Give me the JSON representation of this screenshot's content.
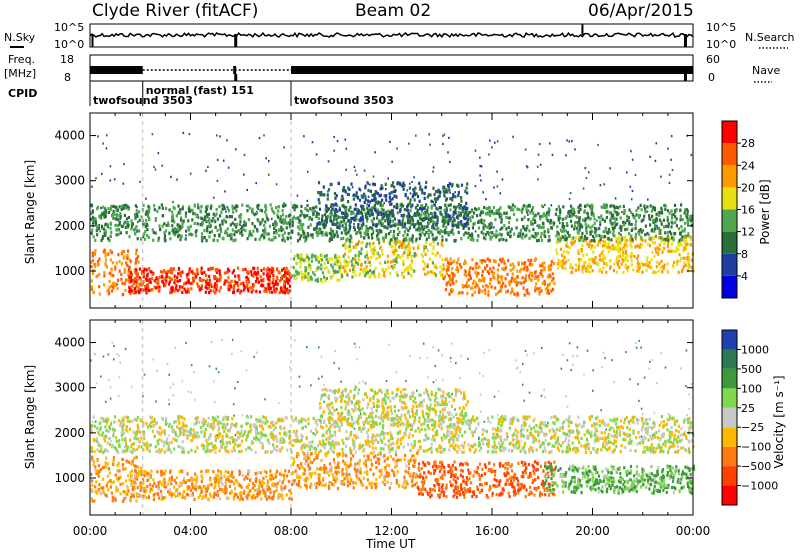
{
  "header": {
    "station": "Clyde River (fitACF)",
    "beam": "Beam 02",
    "date": "06/Apr/2015"
  },
  "strip": {
    "nsky_label": "N.Sky",
    "nsky_ticks": [
      "10^5",
      "10^0"
    ],
    "nsearch_label": "N.Search",
    "nsearch_ticks": [
      "10^5",
      "10^0"
    ],
    "freq_label_1": "Freq.",
    "freq_label_2": "[MHz]",
    "freq_ticks": [
      "18",
      "8"
    ],
    "nave_label": "Nave",
    "nave_ticks": [
      "60",
      "0"
    ],
    "cpid_label": "CPID",
    "cpid_segments": [
      {
        "label": "twofsound 3503",
        "start_hour": 0.0,
        "end_hour": 2.1
      },
      {
        "label": "normal (fast) 151",
        "start_hour": 2.1,
        "end_hour": 8.0
      },
      {
        "label": "twofsound 3503",
        "start_hour": 8.0,
        "end_hour": 24.0
      }
    ]
  },
  "power_panel": {
    "ylabel": "Slant Range [km]",
    "yticks": [
      "4000",
      "3000",
      "2000",
      "1000"
    ],
    "colorbar_label": "Power [dB]",
    "colorbar_ticks": [
      "28",
      "24",
      "20",
      "16",
      "12",
      "8",
      "4"
    ],
    "colors": [
      "#0000e0",
      "#1f3fa0",
      "#2a6e3a",
      "#4fa84f",
      "#e8e010",
      "#ff9900",
      "#ff5a00",
      "#ff0000"
    ]
  },
  "velocity_panel": {
    "ylabel": "Slant Range [km]",
    "yticks": [
      "4000",
      "3000",
      "2000",
      "1000"
    ],
    "colorbar_label": "Velocity [m s⁻¹]",
    "colorbar_ticks": [
      "1000",
      "500",
      "100",
      "25",
      "−25",
      "−100",
      "−500",
      "−1000"
    ],
    "colors": [
      "#2040b0",
      "#2f7a55",
      "#3c9a3c",
      "#7fd84f",
      "#c8c8c8",
      "#ffb800",
      "#ff7a10",
      "#ff4000",
      "#ff0000"
    ]
  },
  "xaxis": {
    "ticks": [
      "00:00",
      "04:00",
      "08:00",
      "12:00",
      "16:00",
      "20:00",
      "00:00"
    ],
    "label": "Time UT"
  },
  "chart_data": {
    "type": "heatmap",
    "title": "Clyde River (fitACF) Beam 02 06/Apr/2015",
    "x_unit": "hours UT",
    "x_range": [
      0,
      24
    ],
    "y_range_km": [
      180,
      4500
    ],
    "panels": [
      {
        "name": "Power",
        "colorbar_unit": "dB",
        "colorbar_range": [
          0,
          30
        ],
        "bands": [
          {
            "t0": 0.0,
            "t1": 2.0,
            "r0": 500,
            "r1": 1500,
            "level": 24
          },
          {
            "t0": 1.5,
            "t1": 8.0,
            "r0": 550,
            "r1": 1100,
            "level": 28
          },
          {
            "t0": 8.0,
            "t1": 10.0,
            "r0": 800,
            "r1": 1400,
            "level": 16
          },
          {
            "t0": 10.0,
            "t1": 14.0,
            "r0": 900,
            "r1": 1700,
            "level": 18
          },
          {
            "t0": 14.0,
            "t1": 18.5,
            "r0": 500,
            "r1": 1300,
            "level": 24
          },
          {
            "t0": 18.5,
            "t1": 24.0,
            "r0": 1000,
            "r1": 1800,
            "level": 20
          },
          {
            "t0": 0.0,
            "t1": 24.0,
            "r0": 1700,
            "r1": 2500,
            "level": 12
          },
          {
            "t0": 9.0,
            "t1": 15.0,
            "r0": 2000,
            "r1": 3000,
            "level": 8
          }
        ]
      },
      {
        "name": "Velocity",
        "colorbar_unit": "m s^-1",
        "colorbar_range": [
          -1000,
          1000
        ],
        "bands": [
          {
            "t0": 0.0,
            "t1": 2.0,
            "r0": 500,
            "r1": 1500,
            "level": -100
          },
          {
            "t0": 1.5,
            "t1": 8.0,
            "r0": 550,
            "r1": 1200,
            "level": -100
          },
          {
            "t0": 8.0,
            "t1": 13.0,
            "r0": 800,
            "r1": 1600,
            "level": -100
          },
          {
            "t0": 13.0,
            "t1": 18.5,
            "r0": 600,
            "r1": 1400,
            "level": -500
          },
          {
            "t0": 18.0,
            "t1": 24.0,
            "r0": 700,
            "r1": 1300,
            "level": 100
          },
          {
            "t0": 0.0,
            "t1": 24.0,
            "r0": 1600,
            "r1": 2400,
            "level": 0
          },
          {
            "t0": 9.0,
            "t1": 15.0,
            "r0": 2200,
            "r1": 3000,
            "level": 0
          }
        ]
      }
    ]
  }
}
